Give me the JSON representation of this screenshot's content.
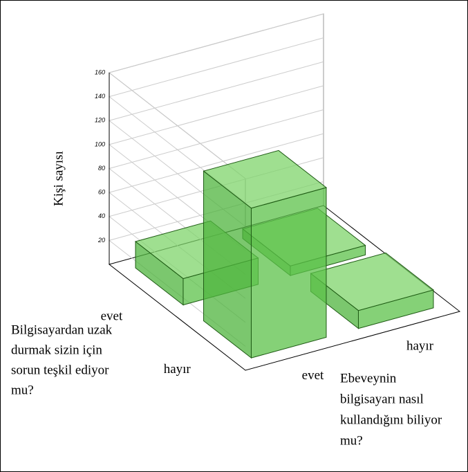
{
  "chart_data": {
    "type": "bar3d",
    "zlabel": "Kişi sayısı",
    "rows": [
      "evet",
      "hayır"
    ],
    "row_axis_label": [
      "Bilgisayardan uzak",
      "durmak sizin için",
      "sorun teşkil ediyor",
      "mu?"
    ],
    "columns": [
      "evet",
      "hayır"
    ],
    "column_axis_label": [
      "Ebeveynin",
      "bilgisayarı nasıl",
      "kullandığını biliyor",
      "mu?"
    ],
    "values": [
      [
        22,
        8
      ],
      [
        125,
        15
      ]
    ],
    "color": "#5cc24a",
    "zlim": [
      0,
      160
    ],
    "zticks": [
      20,
      40,
      60,
      80,
      100,
      120,
      140,
      160
    ],
    "grid": true
  }
}
